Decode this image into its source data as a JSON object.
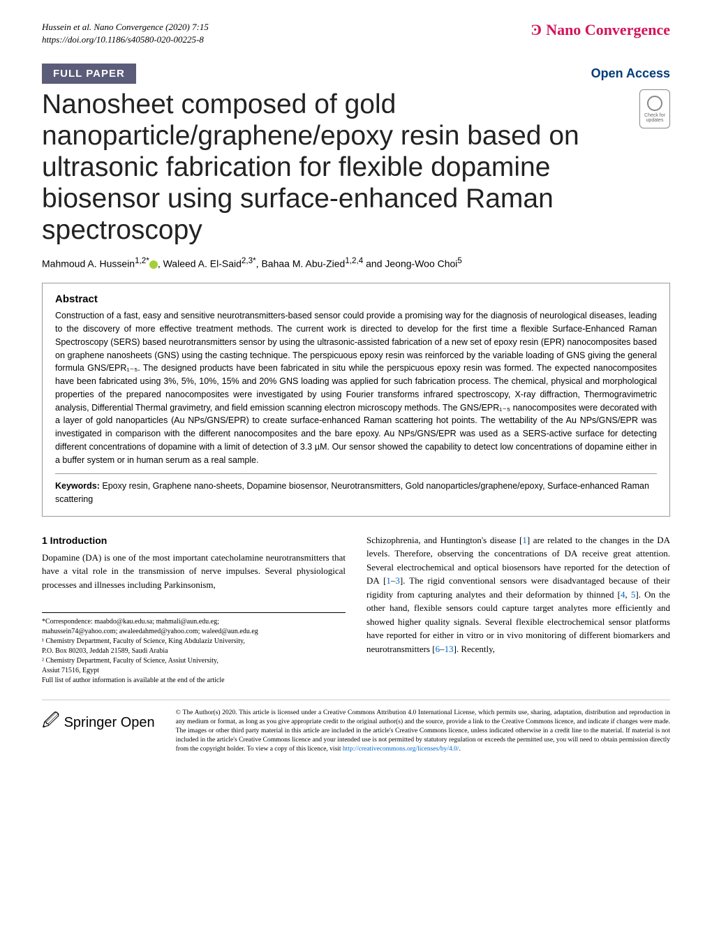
{
  "header": {
    "citation_line1": "Hussein et al. Nano Convergence           (2020) 7:15",
    "citation_line2": "https://doi.org/10.1186/s40580-020-00225-8",
    "journal_name": "Nano Convergence"
  },
  "labels": {
    "full_paper": "FULL PAPER",
    "open_access": "Open Access",
    "check_updates": "Check for updates"
  },
  "article": {
    "title": "Nanosheet composed of gold nanoparticle/graphene/epoxy resin based on ultrasonic fabrication for flexible dopamine biosensor using surface-enhanced Raman spectroscopy",
    "authors_html": "Mahmoud A. Hussein<sup>1,2*</sup> ⓘ, Waleed A. El-Said<sup>2,3*</sup>, Bahaa M. Abu-Zied<sup>1,2,4</sup> and Jeong-Woo Choi<sup>5</sup>"
  },
  "abstract": {
    "heading": "Abstract",
    "text": "Construction of a fast, easy and sensitive neurotransmitters-based sensor could provide a promising way for the diagnosis of neurological diseases, leading to the discovery of more effective treatment methods. The current work is directed to develop for the first time a flexible Surface-Enhanced Raman Spectroscopy (SERS) based neurotransmitters sensor by using the ultrasonic-assisted fabrication of a new set of epoxy resin (EPR) nanocomposites based on graphene nanosheets (GNS) using the casting technique. The perspicuous epoxy resin was reinforced by the variable loading of GNS giving the general formula GNS/EPR₁₋₅. The designed products have been fabricated in situ while the perspicuous epoxy resin was formed. The expected nanocomposites have been fabricated using 3%, 5%, 10%, 15% and 20% GNS loading was applied for such fabrication process. The chemical, physical and morphological properties of the prepared nanocomposites were investigated by using Fourier transforms infrared spectroscopy, X-ray diffraction, Thermogravimetric analysis, Differential Thermal gravimetry, and field emission scanning electron microscopy methods. The GNS/EPR₁₋₅ nanocomposites were decorated with a layer of gold nanoparticles (Au NPs/GNS/EPR) to create surface-enhanced Raman scattering hot points. The wettability of the Au NPs/GNS/EPR was investigated in comparison with the different nanocomposites and the bare epoxy. Au NPs/GNS/EPR was used as a SERS-active surface for detecting different concentrations of dopamine with a limit of detection of 3.3 µM. Our sensor showed the capability to detect low concentrations of dopamine either in a buffer system or in human serum as a real sample.",
    "keywords_label": "Keywords:",
    "keywords": "Epoxy resin, Graphene nano-sheets, Dopamine biosensor, Neurotransmitters, Gold nanoparticles/graphene/epoxy, Surface-enhanced Raman scattering"
  },
  "intro": {
    "heading": "1 Introduction",
    "col1_text": "Dopamine (DA) is one of the most important catecholamine neurotransmitters that have a vital role in the transmission of nerve impulses. Several physiological processes and illnesses including Parkinsonism,",
    "col2_text_pre": "Schizophrenia, and Huntington's disease [",
    "ref1": "1",
    "col2_text_mid1": "] are related to the changes in the DA levels. Therefore, observing the concentrations of DA receive great attention. Several electrochemical and optical biosensors have reported for the detection of DA [",
    "ref1b": "1",
    "refdash1": "–",
    "ref3": "3",
    "col2_text_mid2": "]. The rigid conventional sensors were disadvantaged because of their rigidity from capturing analytes and their deformation by thinned [",
    "ref4": "4",
    "refcomma": ", ",
    "ref5": "5",
    "col2_text_mid3": "]. On the other hand, flexible sensors could capture target analytes more efficiently and showed higher quality signals. Several flexible electrochemical sensor platforms have reported for either in vitro or in vivo monitoring of different biomarkers and neurotransmitters [",
    "ref6": "6",
    "refdash2": "–",
    "ref13": "13",
    "col2_text_end": "]. Recently,"
  },
  "correspondence": {
    "line1": "*Correspondence: maabdo@kau.edu.sa; mahmali@aun.edu.eg;",
    "line2": "mahussein74@yahoo.com; awaleedahmed@yahoo.com; waleed@aun.edu.eg",
    "line3": "¹ Chemistry Department, Faculty of Science, King Abdulaziz University,",
    "line4": "P.O. Box 80203, Jeddah 21589, Saudi Arabia",
    "line5": "² Chemistry Department, Faculty of Science, Assiut University,",
    "line6": "Assiut 71516, Egypt",
    "line7": "Full list of author information is available at the end of the article"
  },
  "footer": {
    "springer": "Springer Open",
    "license_pre": "© The Author(s) 2020. This article is licensed under a Creative Commons Attribution 4.0 International License, which permits use, sharing, adaptation, distribution and reproduction in any medium or format, as long as you give appropriate credit to the original author(s) and the source, provide a link to the Creative Commons licence, and indicate if changes were made. The images or other third party material in this article are included in the article's Creative Commons licence, unless indicated otherwise in a credit line to the material. If material is not included in the article's Creative Commons licence and your intended use is not permitted by statutory regulation or exceeds the permitted use, you will need to obtain permission directly from the copyright holder. To view a copy of this licence, visit ",
    "license_link_text": "http://creativecommons.org/licenses/by/4.0/",
    "license_post": "."
  },
  "colors": {
    "tag_bg": "#5b5b7a",
    "open_access": "#003d7a",
    "journal_brand": "#d4145a",
    "link": "#0066cc",
    "orcid": "#a6ce39"
  }
}
